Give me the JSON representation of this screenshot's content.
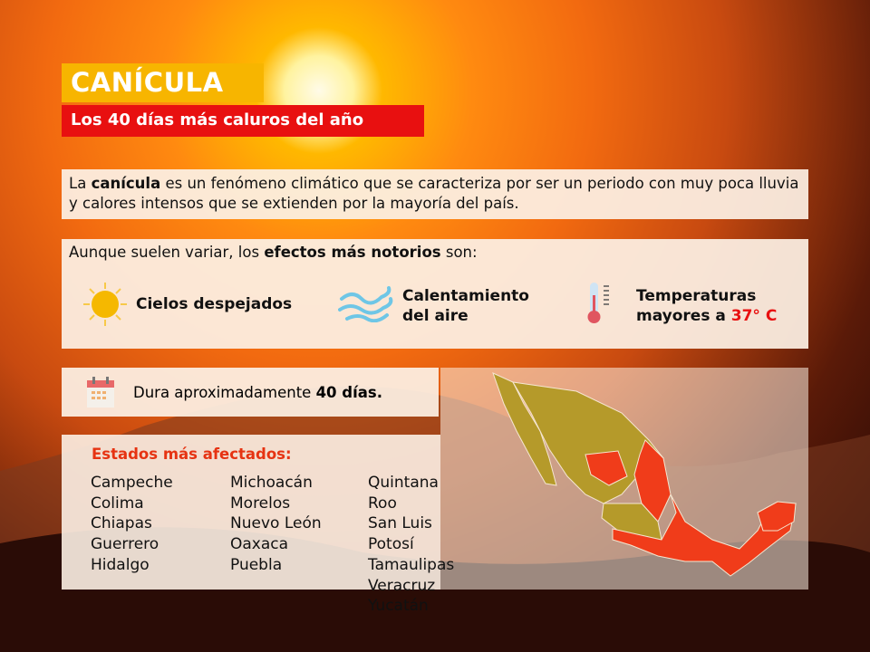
{
  "header": {
    "title": "CANÍCULA",
    "subtitle": "Los 40 días más caluros del año"
  },
  "intro": {
    "pre": "La ",
    "bold": "canícula",
    "post": " es un fenómeno climático que se caracteriza por ser un periodo con muy poca lluvia y calores intensos que se extienden por la mayoría del país."
  },
  "effects": {
    "pre": "Aunque suelen variar, los ",
    "bold": "efectos más notorios",
    "post": " son:",
    "items": [
      {
        "icon": "sun-icon",
        "label": "Cielos despejados"
      },
      {
        "icon": "wind-icon",
        "line1": "Calentamiento",
        "line2": "del aire"
      },
      {
        "icon": "thermometer-icon",
        "line1": "Temperaturas",
        "line2": "mayores a ",
        "highlight": "37° C"
      }
    ]
  },
  "duration": {
    "icon": "calendar-icon",
    "pre": "Dura aproximadamente ",
    "bold": "40 días."
  },
  "states": {
    "heading": "Estados más afectados:",
    "col1": [
      "Campeche",
      "Colima",
      "Chiapas",
      "Guerrero",
      "Hidalgo"
    ],
    "col2": [
      "Michoacán",
      "Morelos",
      "Nuevo León",
      "Oaxaca",
      "Puebla"
    ],
    "col3": [
      "Quintana Roo",
      "San Luis Potosí",
      "Tamaulipas",
      "Veracruz",
      "Yucatán"
    ]
  },
  "colors": {
    "yellow": "#f7b500",
    "red": "#e81010",
    "affected": "#f03c1a",
    "other": "#b59a2a"
  }
}
